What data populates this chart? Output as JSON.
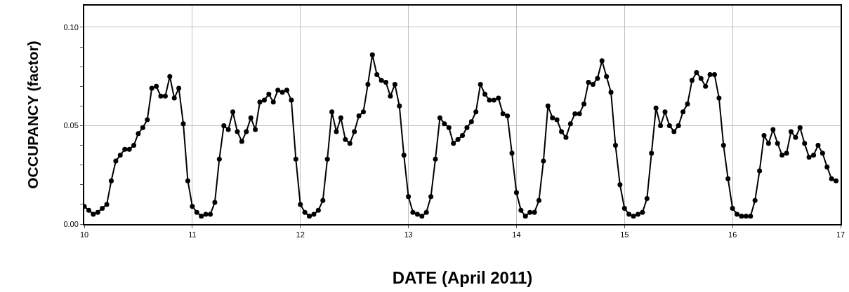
{
  "chart_data": {
    "type": "line",
    "xlabel": "DATE (April 2011)",
    "ylabel": "OCCUPANCY (factor)",
    "x": [
      10,
      10.0417,
      10.0833,
      10.125,
      10.1667,
      10.2083,
      10.25,
      10.2917,
      10.3333,
      10.375,
      10.4167,
      10.4583,
      10.5,
      10.5417,
      10.5833,
      10.625,
      10.6667,
      10.7083,
      10.75,
      10.7917,
      10.8333,
      10.875,
      10.9167,
      10.9583,
      11,
      11.0417,
      11.0833,
      11.125,
      11.1667,
      11.2083,
      11.25,
      11.2917,
      11.3333,
      11.375,
      11.4167,
      11.4583,
      11.5,
      11.5417,
      11.5833,
      11.625,
      11.6667,
      11.7083,
      11.75,
      11.7917,
      11.8333,
      11.875,
      11.9167,
      11.9583,
      12,
      12.0417,
      12.0833,
      12.125,
      12.1667,
      12.2083,
      12.25,
      12.2917,
      12.3333,
      12.375,
      12.4167,
      12.4583,
      12.5,
      12.5417,
      12.5833,
      12.625,
      12.6667,
      12.7083,
      12.75,
      12.7917,
      12.8333,
      12.875,
      12.9167,
      12.9583,
      13,
      13.0417,
      13.0833,
      13.125,
      13.1667,
      13.2083,
      13.25,
      13.2917,
      13.3333,
      13.375,
      13.4167,
      13.4583,
      13.5,
      13.5417,
      13.5833,
      13.625,
      13.6667,
      13.7083,
      13.75,
      13.7917,
      13.8333,
      13.875,
      13.9167,
      13.9583,
      14,
      14.0417,
      14.0833,
      14.125,
      14.1667,
      14.2083,
      14.25,
      14.2917,
      14.3333,
      14.375,
      14.4167,
      14.4583,
      14.5,
      14.5417,
      14.5833,
      14.625,
      14.6667,
      14.7083,
      14.75,
      14.7917,
      14.8333,
      14.875,
      14.9167,
      14.9583,
      15,
      15.0417,
      15.0833,
      15.125,
      15.1667,
      15.2083,
      15.25,
      15.2917,
      15.3333,
      15.375,
      15.4167,
      15.4583,
      15.5,
      15.5417,
      15.5833,
      15.625,
      15.6667,
      15.7083,
      15.75,
      15.7917,
      15.8333,
      15.875,
      15.9167,
      15.9583,
      16,
      16.0417,
      16.0833,
      16.125,
      16.1667,
      16.2083,
      16.25,
      16.2917,
      16.3333,
      16.375,
      16.4167,
      16.4583,
      16.5,
      16.5417,
      16.5833,
      16.625,
      16.6667,
      16.7083,
      16.75,
      16.7917,
      16.8333,
      16.875,
      16.9167,
      16.9583
    ],
    "series": [
      {
        "color": "#000000",
        "values": [
          0.009,
          0.007,
          0.005,
          0.006,
          0.008,
          0.01,
          0.022,
          0.032,
          0.035,
          0.038,
          0.038,
          0.04,
          0.046,
          0.049,
          0.053,
          0.069,
          0.07,
          0.065,
          0.065,
          0.075,
          0.064,
          0.069,
          0.051,
          0.022,
          0.009,
          0.006,
          0.004,
          0.005,
          0.005,
          0.011,
          0.033,
          0.05,
          0.048,
          0.057,
          0.047,
          0.042,
          0.047,
          0.054,
          0.048,
          0.062,
          0.063,
          0.066,
          0.062,
          0.068,
          0.067,
          0.068,
          0.063,
          0.033,
          0.01,
          0.006,
          0.004,
          0.005,
          0.007,
          0.012,
          0.033,
          0.057,
          0.047,
          0.054,
          0.043,
          0.041,
          0.047,
          0.055,
          0.057,
          0.071,
          0.086,
          0.076,
          0.073,
          0.072,
          0.065,
          0.071,
          0.06,
          0.035,
          0.014,
          0.006,
          0.005,
          0.004,
          0.006,
          0.014,
          0.033,
          0.054,
          0.051,
          0.049,
          0.041,
          0.043,
          0.045,
          0.049,
          0.052,
          0.057,
          0.071,
          0.066,
          0.063,
          0.063,
          0.064,
          0.056,
          0.055,
          0.036,
          0.016,
          0.007,
          0.004,
          0.006,
          0.006,
          0.012,
          0.032,
          0.06,
          0.054,
          0.053,
          0.047,
          0.044,
          0.051,
          0.056,
          0.056,
          0.061,
          0.072,
          0.071,
          0.074,
          0.083,
          0.075,
          0.067,
          0.04,
          0.02,
          0.008,
          0.005,
          0.004,
          0.005,
          0.006,
          0.013,
          0.036,
          0.059,
          0.05,
          0.057,
          0.05,
          0.047,
          0.05,
          0.057,
          0.061,
          0.073,
          0.077,
          0.074,
          0.07,
          0.076,
          0.076,
          0.064,
          0.04,
          0.023,
          0.008,
          0.005,
          0.004,
          0.004,
          0.004,
          0.012,
          0.027,
          0.045,
          0.041,
          0.048,
          0.041,
          0.035,
          0.036,
          0.047,
          0.044,
          0.049,
          0.041,
          0.034,
          0.035,
          0.04,
          0.036,
          0.029,
          0.023,
          0.022
        ]
      }
    ],
    "xlim": [
      10,
      17
    ],
    "xticks": [
      10,
      11,
      12,
      13,
      14,
      15,
      16,
      17
    ],
    "ylim": [
      0,
      0.111
    ],
    "yticks": [
      {
        "value": 0,
        "label": "0.00"
      },
      {
        "value": 0.01,
        "label": null
      },
      {
        "value": 0.02,
        "label": null
      },
      {
        "value": 0.03,
        "label": null
      },
      {
        "value": 0.04,
        "label": null
      },
      {
        "value": 0.05,
        "label": "0.05"
      },
      {
        "value": 0.06,
        "label": null
      },
      {
        "value": 0.07,
        "label": null
      },
      {
        "value": 0.08,
        "label": null
      },
      {
        "value": 0.09,
        "label": null
      },
      {
        "value": 0.1,
        "label": "0.10"
      }
    ],
    "grid": true,
    "marker": "circle",
    "line_style": "solid"
  }
}
